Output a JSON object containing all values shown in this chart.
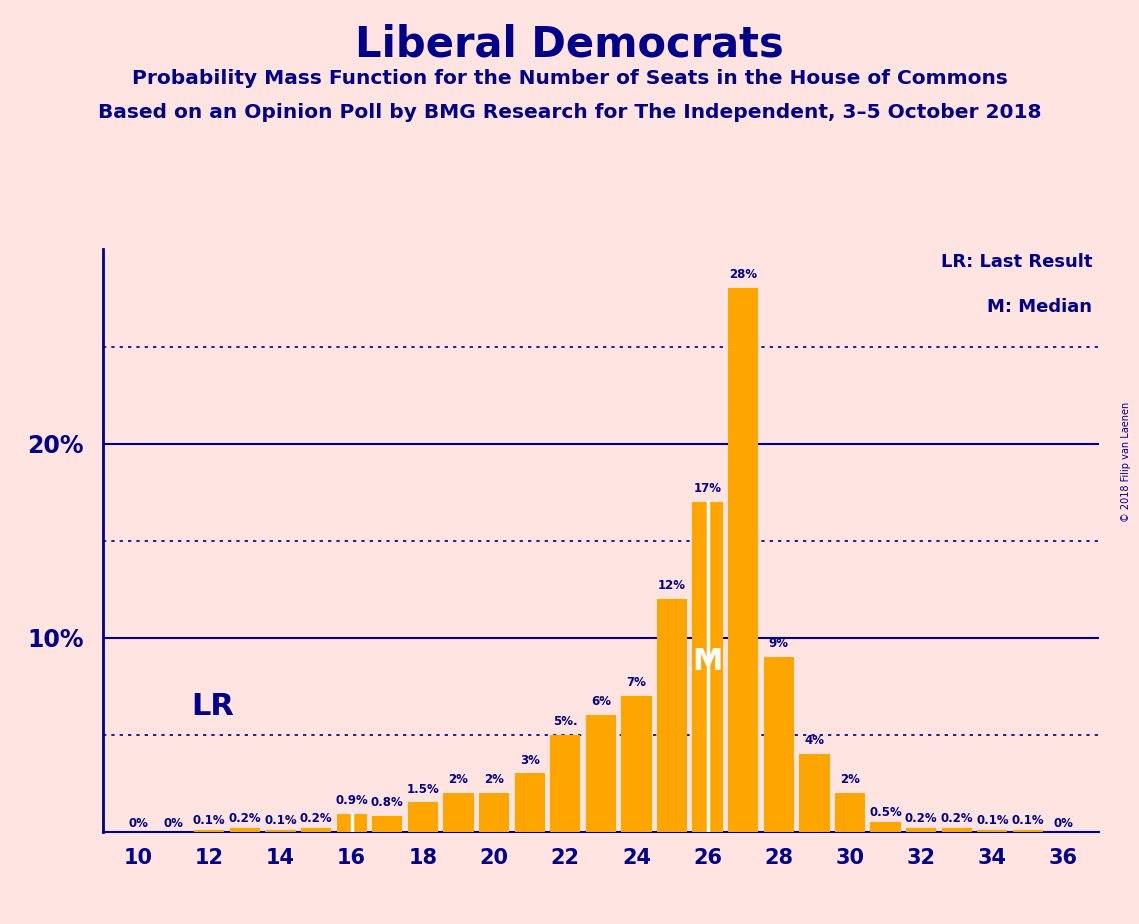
{
  "title": "Liberal Democrats",
  "subtitle1": "Probability Mass Function for the Number of Seats in the House of Commons",
  "subtitle2": "Based on an Opinion Poll by BMG Research for The Independent, 3–5 October 2018",
  "copyright": "© 2018 Filip van Laenen",
  "seats": [
    10,
    11,
    12,
    13,
    14,
    15,
    16,
    17,
    18,
    19,
    20,
    21,
    22,
    23,
    24,
    25,
    26,
    27,
    28,
    29,
    30,
    31,
    32,
    33,
    34,
    35,
    36
  ],
  "probabilities": [
    0.0,
    0.0,
    0.1,
    0.2,
    0.1,
    0.2,
    0.9,
    0.8,
    1.5,
    2.0,
    2.0,
    3.0,
    5.0,
    6.0,
    7.0,
    12.0,
    17.0,
    28.0,
    9.0,
    4.0,
    2.0,
    0.5,
    0.2,
    0.2,
    0.1,
    0.1,
    0.0
  ],
  "labels": [
    "0%",
    "0%",
    "0.1%",
    "0.2%",
    "0.1%",
    "0.2%",
    "0.9%",
    "0.8%",
    "1.5%",
    "2%",
    "2%",
    "3%",
    "5%.",
    "6%",
    "7%",
    "12%",
    "17%",
    "28%",
    "9%",
    "4%",
    "2%",
    "0.5%",
    "0.2%",
    "0.2%",
    "0.1%",
    "0.1%",
    "0%"
  ],
  "bar_color": "#FFA500",
  "background_color": "#FFE4E1",
  "text_color": "#00008B",
  "LR_seat": 16,
  "median_seat": 26,
  "x_min": 9,
  "x_max": 37,
  "y_max": 30,
  "solid_gridlines": [
    10,
    20
  ],
  "dotted_gridlines": [
    5,
    15,
    25
  ],
  "legend_lr": "LR: Last Result",
  "legend_m": "M: Median"
}
